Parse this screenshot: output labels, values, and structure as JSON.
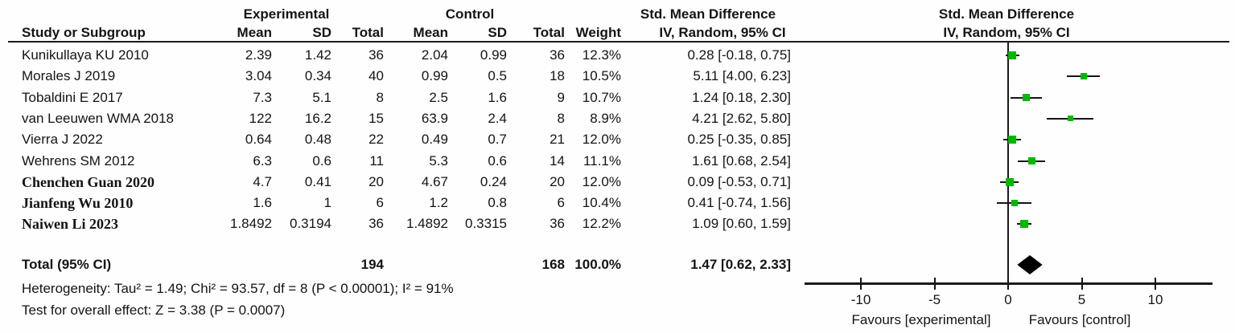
{
  "table": {
    "group_headers": {
      "experimental": "Experimental",
      "control": "Control",
      "smd": "Std. Mean Difference"
    },
    "sub_headers": {
      "study": "Study or Subgroup",
      "mean": "Mean",
      "sd": "SD",
      "total": "Total",
      "weight": "Weight",
      "ci": "IV, Random, 95% CI"
    },
    "rows": [
      {
        "study": "Kunikullaya KU 2010",
        "e_mean": "2.39",
        "e_sd": "1.42",
        "e_total": "36",
        "c_mean": "2.04",
        "c_sd": "0.99",
        "c_total": "36",
        "weight": "12.3%",
        "ci": "0.28 [-0.18, 0.75]",
        "serif": false
      },
      {
        "study": "Morales J 2019",
        "e_mean": "3.04",
        "e_sd": "0.34",
        "e_total": "40",
        "c_mean": "0.99",
        "c_sd": "0.5",
        "c_total": "18",
        "weight": "10.5%",
        "ci": "5.11 [4.00, 6.23]",
        "serif": false
      },
      {
        "study": "Tobaldini E 2017",
        "e_mean": "7.3",
        "e_sd": "5.1",
        "e_total": "8",
        "c_mean": "2.5",
        "c_sd": "1.6",
        "c_total": "9",
        "weight": "10.7%",
        "ci": "1.24 [0.18, 2.30]",
        "serif": false
      },
      {
        "study": "van Leeuwen WMA 2018",
        "e_mean": "122",
        "e_sd": "16.2",
        "e_total": "15",
        "c_mean": "63.9",
        "c_sd": "2.4",
        "c_total": "8",
        "weight": "8.9%",
        "ci": "4.21 [2.62, 5.80]",
        "serif": false
      },
      {
        "study": "Vierra J 2022",
        "e_mean": "0.64",
        "e_sd": "0.48",
        "e_total": "22",
        "c_mean": "0.49",
        "c_sd": "0.7",
        "c_total": "21",
        "weight": "12.0%",
        "ci": "0.25 [-0.35, 0.85]",
        "serif": false
      },
      {
        "study": "Wehrens SM 2012",
        "e_mean": "6.3",
        "e_sd": "0.6",
        "e_total": "11",
        "c_mean": "5.3",
        "c_sd": "0.6",
        "c_total": "14",
        "weight": "11.1%",
        "ci": "1.61 [0.68, 2.54]",
        "serif": false
      },
      {
        "study": "Chenchen Guan 2020",
        "e_mean": "4.7",
        "e_sd": "0.41",
        "e_total": "20",
        "c_mean": "4.67",
        "c_sd": "0.24",
        "c_total": "20",
        "weight": "12.0%",
        "ci": "0.09 [-0.53, 0.71]",
        "serif": true
      },
      {
        "study": "Jianfeng Wu 2010",
        "e_mean": "1.6",
        "e_sd": "1",
        "e_total": "6",
        "c_mean": "1.2",
        "c_sd": "0.8",
        "c_total": "6",
        "weight": "10.4%",
        "ci": "0.41 [-0.74, 1.56]",
        "serif": true
      },
      {
        "study": "Naiwen Li 2023",
        "e_mean": "1.8492",
        "e_sd": "0.3194",
        "e_total": "36",
        "c_mean": "1.4892",
        "c_sd": "0.3315",
        "c_total": "36",
        "weight": "12.2%",
        "ci": "1.09 [0.60, 1.59]",
        "serif": true
      }
    ],
    "total": {
      "label": "Total (95% CI)",
      "e_total": "194",
      "c_total": "168",
      "weight": "100.0%",
      "ci": "1.47 [0.62, 2.33]"
    },
    "heterogeneity": "Heterogeneity: Tau² = 1.49; Chi² = 93.57, df = 8 (P < 0.00001); I² = 91%",
    "overall_effect": "Test for overall effect: Z = 3.38 (P = 0.0007)"
  },
  "plot": {
    "header_line1": "Std. Mean Difference",
    "header_line2": "IV, Random, 95% CI",
    "favours_left": "Favours [experimental]",
    "favours_right": "Favours [control]",
    "marker_color": "#00b800",
    "line_color": "#141414"
  },
  "chart_data": {
    "type": "forest",
    "title": "Std. Mean Difference, IV, Random, 95% CI",
    "studies": [
      "Kunikullaya KU 2010",
      "Morales J 2019",
      "Tobaldini E 2017",
      "van Leeuwen WMA 2018",
      "Vierra J 2022",
      "Wehrens SM 2012",
      "Chenchen Guan 2020",
      "Jianfeng Wu 2010",
      "Naiwen Li 2023"
    ],
    "estimates": [
      0.28,
      5.11,
      1.24,
      4.21,
      0.25,
      1.61,
      0.09,
      0.41,
      1.09
    ],
    "ci_low": [
      -0.18,
      4.0,
      0.18,
      2.62,
      -0.35,
      0.68,
      -0.53,
      -0.74,
      0.6
    ],
    "ci_high": [
      0.75,
      6.23,
      2.3,
      5.8,
      0.85,
      2.54,
      0.71,
      1.56,
      1.59
    ],
    "weights_pct": [
      12.3,
      10.5,
      10.7,
      8.9,
      12.0,
      11.1,
      12.0,
      10.4,
      12.2
    ],
    "total": {
      "estimate": 1.47,
      "ci_low": 0.62,
      "ci_high": 2.33
    },
    "ticks": [
      -10,
      -5,
      0,
      5,
      10
    ],
    "xlim": [
      -13.8,
      13.9
    ],
    "xlabel_left": "Favours [experimental]",
    "xlabel_right": "Favours [control]"
  }
}
